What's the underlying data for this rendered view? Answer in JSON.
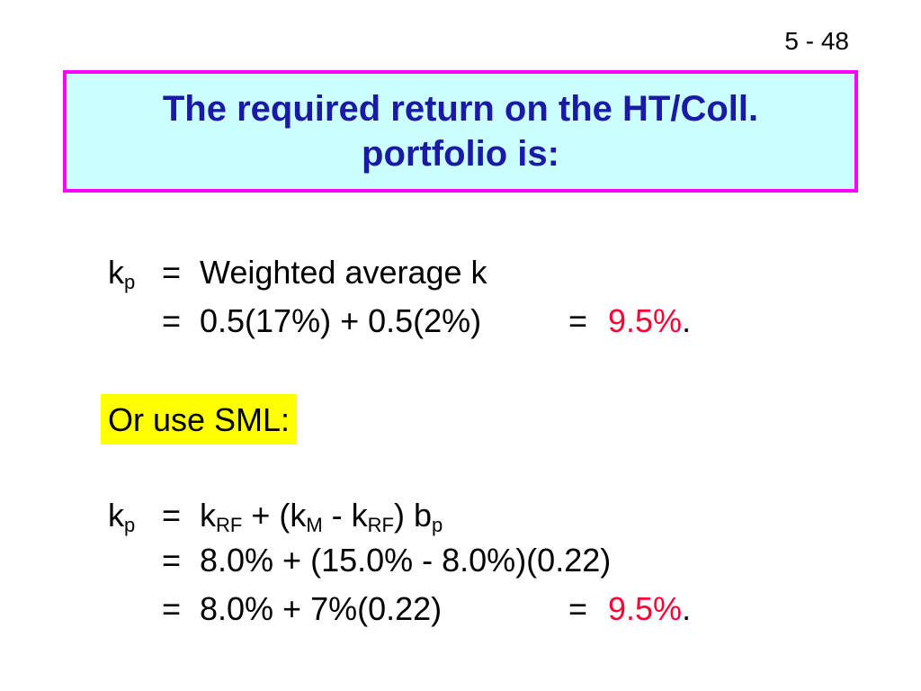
{
  "slide_number": "5 - 48",
  "title": {
    "line1": "The required return on the HT/Coll.",
    "line2": "portfolio is:"
  },
  "block1": {
    "lhs_var": "k",
    "lhs_sub": "p",
    "line1_eq": "=",
    "line1_rhs": "Weighted average k",
    "line2_eq": "=",
    "line2_rhs": "0.5(17%) + 0.5(2%)",
    "line2_eq2": "=",
    "line2_result": "9.5%",
    "line2_period": "."
  },
  "sml_label": "Or use SML:",
  "block2": {
    "lhs_var": "k",
    "lhs_sub": "p",
    "line1_eq": "=",
    "formula": {
      "k1": "k",
      "k1_sub": "RF",
      "plus": " + (k",
      "m_sub": "M",
      "minus": " - k",
      "rf_sub": "RF",
      "close": ") b",
      "b_sub": "p"
    },
    "line2_eq": "=",
    "line2_rhs": "8.0% + (15.0% - 8.0%)(0.22)",
    "line3_eq": "=",
    "line3_rhs": "8.0% + 7%(0.22)",
    "line3_eq2": "=",
    "line3_result": "9.5%",
    "line3_period": "."
  },
  "colors": {
    "title_text": "#1a1aa6",
    "title_bg": "#ccffff",
    "title_border": "#ff00ff",
    "result": "#ff0033",
    "highlight": "#ffff00"
  }
}
